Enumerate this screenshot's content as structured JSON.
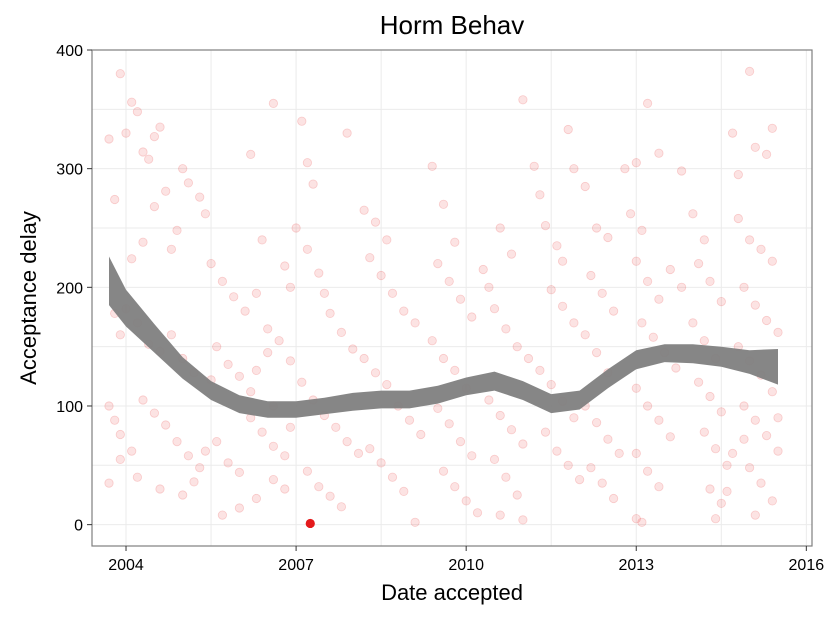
{
  "chart_data": {
    "type": "scatter",
    "title": "Horm Behav",
    "xlabel": "Date accepted",
    "ylabel": "Acceptance delay",
    "xlim": [
      2003.4,
      2016.1
    ],
    "ylim": [
      -18,
      400
    ],
    "xticks": [
      {
        "value": 2004,
        "label": "2004"
      },
      {
        "value": 2007,
        "label": "2007"
      },
      {
        "value": 2010,
        "label": "2010"
      },
      {
        "value": 2013,
        "label": "2013"
      },
      {
        "value": 2016,
        "label": "2016"
      }
    ],
    "yticks": [
      {
        "value": 0,
        "label": "0"
      },
      {
        "value": 100,
        "label": "100"
      },
      {
        "value": 200,
        "label": "200"
      },
      {
        "value": 300,
        "label": "300"
      },
      {
        "value": 400,
        "label": "400"
      }
    ],
    "grid": true,
    "point_color": "#e41a1c",
    "point_alpha": 0.12,
    "smooth_color": "#7f7f7f",
    "highlight": {
      "x": 2007.25,
      "y": 1,
      "color": "#e41a1c"
    },
    "smooth": [
      {
        "x": 2003.7,
        "lo": 185,
        "hi": 226
      },
      {
        "x": 2004.0,
        "lo": 167,
        "hi": 198
      },
      {
        "x": 2004.5,
        "lo": 145,
        "hi": 169
      },
      {
        "x": 2005.0,
        "lo": 123,
        "hi": 141
      },
      {
        "x": 2005.5,
        "lo": 105,
        "hi": 121
      },
      {
        "x": 2006.0,
        "lo": 94,
        "hi": 109
      },
      {
        "x": 2006.5,
        "lo": 90,
        "hi": 104
      },
      {
        "x": 2007.0,
        "lo": 90,
        "hi": 104
      },
      {
        "x": 2007.5,
        "lo": 93,
        "hi": 107
      },
      {
        "x": 2008.0,
        "lo": 96,
        "hi": 111
      },
      {
        "x": 2008.5,
        "lo": 98,
        "hi": 113
      },
      {
        "x": 2009.0,
        "lo": 98,
        "hi": 113
      },
      {
        "x": 2009.5,
        "lo": 102,
        "hi": 117
      },
      {
        "x": 2010.0,
        "lo": 109,
        "hi": 124
      },
      {
        "x": 2010.5,
        "lo": 113,
        "hi": 129
      },
      {
        "x": 2011.0,
        "lo": 105,
        "hi": 121
      },
      {
        "x": 2011.5,
        "lo": 94,
        "hi": 110
      },
      {
        "x": 2012.0,
        "lo": 97,
        "hi": 113
      },
      {
        "x": 2012.5,
        "lo": 115,
        "hi": 131
      },
      {
        "x": 2013.0,
        "lo": 131,
        "hi": 147
      },
      {
        "x": 2013.5,
        "lo": 137,
        "hi": 152
      },
      {
        "x": 2014.0,
        "lo": 136,
        "hi": 152
      },
      {
        "x": 2014.5,
        "lo": 133,
        "hi": 150
      },
      {
        "x": 2015.0,
        "lo": 127,
        "hi": 147
      },
      {
        "x": 2015.5,
        "lo": 118,
        "hi": 148
      }
    ],
    "points": [
      [
        2003.7,
        325
      ],
      [
        2003.8,
        274
      ],
      [
        2003.9,
        380
      ],
      [
        2004.0,
        330
      ],
      [
        2004.1,
        356
      ],
      [
        2004.2,
        348
      ],
      [
        2004.3,
        314
      ],
      [
        2004.4,
        308
      ],
      [
        2004.5,
        327
      ],
      [
        2004.6,
        335
      ],
      [
        2004.7,
        281
      ],
      [
        2004.5,
        268
      ],
      [
        2004.3,
        238
      ],
      [
        2004.1,
        224
      ],
      [
        2004.9,
        248
      ],
      [
        2005.0,
        300
      ],
      [
        2005.1,
        288
      ],
      [
        2005.3,
        276
      ],
      [
        2005.4,
        262
      ],
      [
        2004.8,
        232
      ],
      [
        2003.8,
        178
      ],
      [
        2003.9,
        160
      ],
      [
        2004.0,
        182
      ],
      [
        2004.2,
        170
      ],
      [
        2004.4,
        152
      ],
      [
        2004.6,
        146
      ],
      [
        2004.8,
        160
      ],
      [
        2005.0,
        140
      ],
      [
        2005.2,
        128
      ],
      [
        2005.5,
        122
      ],
      [
        2003.7,
        100
      ],
      [
        2003.8,
        88
      ],
      [
        2003.9,
        76
      ],
      [
        2004.1,
        62
      ],
      [
        2004.3,
        105
      ],
      [
        2004.5,
        94
      ],
      [
        2004.7,
        84
      ],
      [
        2004.9,
        70
      ],
      [
        2005.1,
        58
      ],
      [
        2005.3,
        48
      ],
      [
        2003.7,
        35
      ],
      [
        2003.9,
        55
      ],
      [
        2004.2,
        40
      ],
      [
        2004.6,
        30
      ],
      [
        2005.0,
        25
      ],
      [
        2005.2,
        36
      ],
      [
        2005.4,
        62
      ],
      [
        2005.6,
        70
      ],
      [
        2005.8,
        52
      ],
      [
        2006.0,
        44
      ],
      [
        2005.5,
        220
      ],
      [
        2005.7,
        205
      ],
      [
        2005.9,
        192
      ],
      [
        2006.1,
        180
      ],
      [
        2006.3,
        195
      ],
      [
        2006.5,
        165
      ],
      [
        2005.6,
        150
      ],
      [
        2005.8,
        135
      ],
      [
        2006.0,
        125
      ],
      [
        2006.2,
        112
      ],
      [
        2005.7,
        8
      ],
      [
        2006.0,
        14
      ],
      [
        2006.3,
        22
      ],
      [
        2006.6,
        38
      ],
      [
        2006.8,
        30
      ],
      [
        2006.2,
        312
      ],
      [
        2006.6,
        355
      ],
      [
        2006.4,
        240
      ],
      [
        2006.8,
        218
      ],
      [
        2006.9,
        200
      ],
      [
        2006.2,
        90
      ],
      [
        2006.4,
        78
      ],
      [
        2006.6,
        66
      ],
      [
        2006.8,
        58
      ],
      [
        2006.9,
        82
      ],
      [
        2006.3,
        130
      ],
      [
        2006.5,
        145
      ],
      [
        2006.7,
        155
      ],
      [
        2006.9,
        138
      ],
      [
        2006.6,
        100
      ],
      [
        2007.1,
        340
      ],
      [
        2007.2,
        305
      ],
      [
        2007.3,
        287
      ],
      [
        2007.0,
        250
      ],
      [
        2007.2,
        232
      ],
      [
        2007.4,
        212
      ],
      [
        2007.5,
        195
      ],
      [
        2007.6,
        178
      ],
      [
        2007.8,
        162
      ],
      [
        2008.0,
        148
      ],
      [
        2007.1,
        120
      ],
      [
        2007.3,
        105
      ],
      [
        2007.5,
        92
      ],
      [
        2007.7,
        82
      ],
      [
        2007.9,
        70
      ],
      [
        2008.1,
        60
      ],
      [
        2007.2,
        45
      ],
      [
        2007.4,
        32
      ],
      [
        2007.6,
        24
      ],
      [
        2007.8,
        15
      ],
      [
        2007.9,
        330
      ],
      [
        2008.2,
        265
      ],
      [
        2008.4,
        255
      ],
      [
        2008.6,
        240
      ],
      [
        2008.3,
        225
      ],
      [
        2008.5,
        210
      ],
      [
        2008.7,
        195
      ],
      [
        2008.9,
        180
      ],
      [
        2009.1,
        170
      ],
      [
        2008.2,
        140
      ],
      [
        2008.4,
        128
      ],
      [
        2008.6,
        118
      ],
      [
        2008.8,
        100
      ],
      [
        2009.0,
        88
      ],
      [
        2009.2,
        76
      ],
      [
        2008.3,
        64
      ],
      [
        2008.5,
        52
      ],
      [
        2008.7,
        40
      ],
      [
        2008.9,
        28
      ],
      [
        2009.1,
        2
      ],
      [
        2009.4,
        302
      ],
      [
        2009.6,
        270
      ],
      [
        2009.8,
        238
      ],
      [
        2009.5,
        220
      ],
      [
        2009.7,
        205
      ],
      [
        2009.9,
        190
      ],
      [
        2010.1,
        175
      ],
      [
        2009.4,
        155
      ],
      [
        2009.6,
        140
      ],
      [
        2009.8,
        130
      ],
      [
        2010.0,
        115
      ],
      [
        2009.5,
        98
      ],
      [
        2009.7,
        85
      ],
      [
        2009.9,
        70
      ],
      [
        2010.1,
        58
      ],
      [
        2009.6,
        45
      ],
      [
        2009.8,
        32
      ],
      [
        2010.0,
        20
      ],
      [
        2010.2,
        10
      ],
      [
        2010.3,
        215
      ],
      [
        2010.4,
        200
      ],
      [
        2010.6,
        250
      ],
      [
        2010.8,
        228
      ],
      [
        2010.5,
        182
      ],
      [
        2010.7,
        165
      ],
      [
        2010.9,
        150
      ],
      [
        2011.1,
        140
      ],
      [
        2010.4,
        105
      ],
      [
        2010.6,
        92
      ],
      [
        2010.8,
        80
      ],
      [
        2011.0,
        68
      ],
      [
        2010.5,
        55
      ],
      [
        2010.7,
        40
      ],
      [
        2010.9,
        25
      ],
      [
        2010.6,
        8
      ],
      [
        2011.0,
        4
      ],
      [
        2011.0,
        358
      ],
      [
        2011.2,
        302
      ],
      [
        2011.3,
        278
      ],
      [
        2011.4,
        252
      ],
      [
        2011.6,
        235
      ],
      [
        2011.7,
        222
      ],
      [
        2011.5,
        198
      ],
      [
        2011.7,
        184
      ],
      [
        2011.9,
        170
      ],
      [
        2011.3,
        130
      ],
      [
        2011.5,
        118
      ],
      [
        2011.7,
        104
      ],
      [
        2011.9,
        90
      ],
      [
        2011.4,
        78
      ],
      [
        2011.6,
        62
      ],
      [
        2011.8,
        50
      ],
      [
        2012.0,
        38
      ],
      [
        2011.8,
        333
      ],
      [
        2011.9,
        300
      ],
      [
        2012.1,
        285
      ],
      [
        2012.3,
        250
      ],
      [
        2012.5,
        242
      ],
      [
        2012.2,
        210
      ],
      [
        2012.4,
        195
      ],
      [
        2012.6,
        180
      ],
      [
        2012.1,
        160
      ],
      [
        2012.3,
        145
      ],
      [
        2012.5,
        128
      ],
      [
        2012.1,
        100
      ],
      [
        2012.3,
        86
      ],
      [
        2012.5,
        72
      ],
      [
        2012.7,
        60
      ],
      [
        2012.2,
        48
      ],
      [
        2012.4,
        35
      ],
      [
        2012.6,
        22
      ],
      [
        2012.8,
        300
      ],
      [
        2012.9,
        262
      ],
      [
        2013.0,
        305
      ],
      [
        2013.1,
        248
      ],
      [
        2013.2,
        355
      ],
      [
        2013.4,
        313
      ],
      [
        2013.0,
        222
      ],
      [
        2013.2,
        205
      ],
      [
        2013.4,
        190
      ],
      [
        2013.6,
        215
      ],
      [
        2013.8,
        200
      ],
      [
        2013.1,
        170
      ],
      [
        2013.3,
        158
      ],
      [
        2013.5,
        145
      ],
      [
        2013.7,
        132
      ],
      [
        2013.0,
        115
      ],
      [
        2013.2,
        100
      ],
      [
        2013.4,
        88
      ],
      [
        2013.6,
        74
      ],
      [
        2013.0,
        60
      ],
      [
        2013.2,
        45
      ],
      [
        2013.4,
        32
      ],
      [
        2013.0,
        5
      ],
      [
        2013.1,
        2
      ],
      [
        2013.8,
        298
      ],
      [
        2014.0,
        262
      ],
      [
        2014.2,
        240
      ],
      [
        2014.1,
        220
      ],
      [
        2014.3,
        205
      ],
      [
        2014.5,
        188
      ],
      [
        2014.0,
        170
      ],
      [
        2014.2,
        155
      ],
      [
        2014.4,
        140
      ],
      [
        2014.1,
        120
      ],
      [
        2014.3,
        108
      ],
      [
        2014.5,
        95
      ],
      [
        2014.2,
        78
      ],
      [
        2014.4,
        64
      ],
      [
        2014.6,
        50
      ],
      [
        2014.3,
        30
      ],
      [
        2014.5,
        18
      ],
      [
        2014.4,
        5
      ],
      [
        2014.7,
        330
      ],
      [
        2014.8,
        295
      ],
      [
        2015.0,
        382
      ],
      [
        2015.1,
        318
      ],
      [
        2015.3,
        312
      ],
      [
        2015.4,
        334
      ],
      [
        2014.8,
        258
      ],
      [
        2015.0,
        240
      ],
      [
        2015.2,
        232
      ],
      [
        2015.4,
        222
      ],
      [
        2014.9,
        200
      ],
      [
        2015.1,
        185
      ],
      [
        2015.3,
        172
      ],
      [
        2015.5,
        162
      ],
      [
        2014.8,
        150
      ],
      [
        2015.0,
        138
      ],
      [
        2015.2,
        126
      ],
      [
        2015.4,
        112
      ],
      [
        2014.9,
        100
      ],
      [
        2015.1,
        88
      ],
      [
        2015.3,
        75
      ],
      [
        2015.5,
        62
      ],
      [
        2015.0,
        48
      ],
      [
        2015.2,
        35
      ],
      [
        2015.4,
        20
      ],
      [
        2015.1,
        8
      ],
      [
        2014.6,
        28
      ],
      [
        2014.7,
        60
      ],
      [
        2014.9,
        72
      ],
      [
        2015.5,
        90
      ]
    ]
  }
}
